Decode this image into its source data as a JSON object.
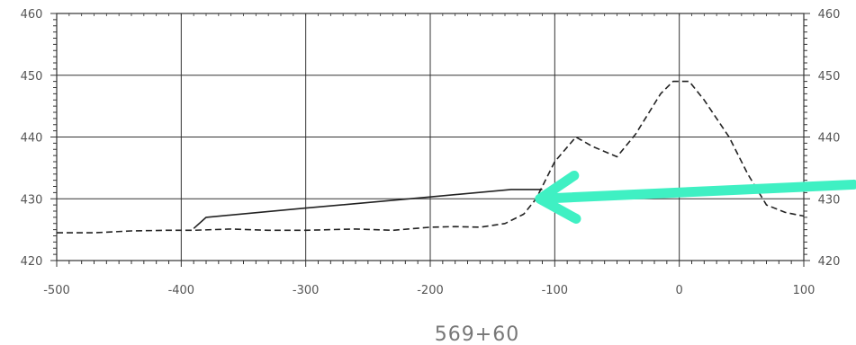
{
  "chart_data": {
    "type": "line",
    "title": "",
    "xlabel": "569+60",
    "ylabel": "",
    "xlim": [
      -500,
      100
    ],
    "ylim": [
      420,
      460
    ],
    "x_ticks": [
      "-500",
      "-400",
      "-300",
      "-200",
      "-100",
      "0",
      "100"
    ],
    "x_tick_values": [
      -500,
      -400,
      -300,
      -200,
      -100,
      0,
      100
    ],
    "y_ticks_left": [
      "420",
      "430",
      "440",
      "450",
      "460"
    ],
    "y_ticks_right": [
      "420",
      "430",
      "440",
      "450",
      "460"
    ],
    "y_tick_values": [
      420,
      430,
      440,
      450,
      460
    ],
    "grid": true,
    "minor_ticks": true,
    "series": [
      {
        "style": "solid",
        "color": "#222222",
        "points": [
          [
            -390,
            425.2
          ],
          [
            -380,
            427.0
          ],
          [
            -300,
            428.5
          ],
          [
            -200,
            430.3
          ],
          [
            -135,
            431.5
          ],
          [
            -110,
            431.5
          ]
        ]
      },
      {
        "style": "dashed",
        "color": "#222222",
        "points": [
          [
            -500,
            424.5
          ],
          [
            -470,
            424.5
          ],
          [
            -440,
            424.8
          ],
          [
            -410,
            424.9
          ],
          [
            -390,
            424.9
          ],
          [
            -360,
            425.1
          ],
          [
            -330,
            424.9
          ],
          [
            -300,
            424.9
          ],
          [
            -260,
            425.1
          ],
          [
            -230,
            424.9
          ],
          [
            -200,
            425.4
          ],
          [
            -180,
            425.5
          ],
          [
            -160,
            425.4
          ],
          [
            -140,
            426.0
          ],
          [
            -125,
            427.5
          ],
          [
            -115,
            430.0
          ],
          [
            -100,
            436.0
          ],
          [
            -83,
            440.0
          ],
          [
            -70,
            438.5
          ],
          [
            -50,
            436.8
          ],
          [
            -35,
            440.5
          ],
          [
            -15,
            447.0
          ],
          [
            -5,
            449.0
          ],
          [
            8,
            449.0
          ],
          [
            20,
            446.0
          ],
          [
            40,
            440.0
          ],
          [
            55,
            434.0
          ],
          [
            70,
            429.0
          ],
          [
            85,
            427.8
          ],
          [
            100,
            427.2
          ]
        ]
      }
    ],
    "annotations": [
      {
        "type": "arrow",
        "color": "#3ff0c3",
        "from": [
          140,
          432.3
        ],
        "to": [
          -112,
          430.0
        ]
      }
    ]
  }
}
